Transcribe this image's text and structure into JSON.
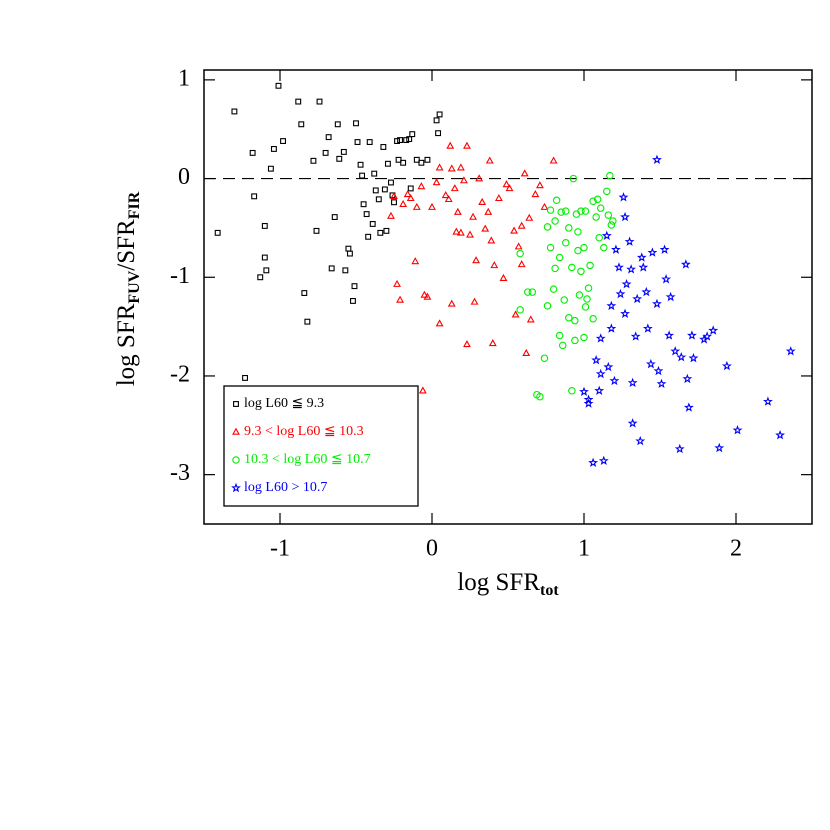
{
  "chart_data": {
    "type": "scatter",
    "xlabel": [
      "log SFR",
      "tot"
    ],
    "ylabel": [
      "log SFR",
      "FUV",
      "/SFR",
      "FIR"
    ],
    "xlim": [
      -1.5,
      2.5
    ],
    "ylim": [
      -3.5,
      1.1
    ],
    "xticks": [
      -1,
      0,
      1,
      2
    ],
    "yticks": [
      -3,
      -2,
      -1,
      0,
      1
    ],
    "hline": 0,
    "legend": "lower left",
    "series": [
      {
        "name": "log L60 ≦ 9.3",
        "color": "#000000",
        "marker": "square",
        "x": [
          -1.41,
          -1.3,
          -1.18,
          -1.17,
          -1.13,
          -1.1,
          -1.1,
          -1.09,
          -1.06,
          -1.04,
          -1.01,
          -1.23,
          -0.98,
          -0.88,
          -0.86,
          -0.84,
          -0.82,
          -0.78,
          -0.76,
          -0.74,
          -0.7,
          -0.68,
          -0.66,
          -0.64,
          -0.62,
          -0.61,
          -0.58,
          -0.57,
          -0.55,
          -0.54,
          -0.52,
          -0.51,
          -0.5,
          -0.49,
          -0.47,
          -0.46,
          -0.45,
          -0.43,
          -0.42,
          -0.41,
          -0.39,
          -0.38,
          -0.37,
          -0.35,
          -0.34,
          -0.32,
          -0.31,
          -0.3,
          -0.29,
          -0.27,
          -0.26,
          -0.25,
          -0.23,
          -0.22,
          -0.21,
          -0.19,
          -0.17,
          -0.15,
          -0.14,
          -0.13,
          -0.1,
          -0.07,
          -0.03,
          0.03,
          0.05,
          0.04
        ],
        "values": [
          -0.55,
          0.68,
          0.26,
          -0.18,
          -1.0,
          -0.48,
          -0.8,
          -0.93,
          0.1,
          0.3,
          0.94,
          -2.02,
          0.38,
          0.78,
          0.55,
          -1.16,
          -1.45,
          0.18,
          -0.53,
          0.78,
          0.26,
          0.42,
          -0.91,
          -0.39,
          0.55,
          0.2,
          0.27,
          -0.93,
          -0.71,
          -0.76,
          -1.24,
          -1.09,
          0.56,
          0.37,
          0.14,
          0.03,
          -0.26,
          -0.36,
          -0.59,
          0.37,
          -0.46,
          0.05,
          -0.12,
          -0.21,
          -0.55,
          0.32,
          -0.11,
          -0.53,
          0.15,
          -0.04,
          -0.17,
          -0.24,
          0.38,
          0.19,
          0.39,
          0.16,
          0.39,
          0.4,
          -0.1,
          0.45,
          0.19,
          0.16,
          0.19,
          0.59,
          0.65,
          0.46
        ]
      },
      {
        "name": "9.3 < log L60 ≦ 10.3",
        "color": "#ff0000",
        "marker": "triangle",
        "x": [
          -0.27,
          -0.25,
          -0.23,
          -0.21,
          -0.19,
          -0.16,
          -0.14,
          -0.11,
          -0.1,
          -0.07,
          -0.06,
          -0.05,
          -0.03,
          0.0,
          0.03,
          0.05,
          0.09,
          0.11,
          0.12,
          0.13,
          0.15,
          0.16,
          0.17,
          0.19,
          0.19,
          0.21,
          0.23,
          0.25,
          0.27,
          0.28,
          0.29,
          0.31,
          0.33,
          0.35,
          0.37,
          0.38,
          0.39,
          0.4,
          0.41,
          0.44,
          0.47,
          0.49,
          0.51,
          0.54,
          0.55,
          0.57,
          0.59,
          0.59,
          0.61,
          0.62,
          0.64,
          0.65,
          0.68,
          0.71,
          0.74,
          0.8,
          0.05,
          0.13,
          0.23
        ],
        "values": [
          -0.38,
          -0.18,
          -1.07,
          -1.23,
          -0.26,
          -0.16,
          -0.2,
          -0.84,
          -0.29,
          -0.08,
          -2.15,
          -1.18,
          -1.2,
          -0.29,
          -0.04,
          0.11,
          -0.17,
          -0.21,
          0.33,
          0.1,
          -0.1,
          -0.54,
          -0.34,
          -0.55,
          0.11,
          -0.02,
          0.33,
          -0.57,
          -0.39,
          -1.25,
          -0.83,
          0.0,
          -0.24,
          -0.51,
          -0.34,
          0.18,
          -0.63,
          -1.67,
          -0.88,
          -0.2,
          -1.01,
          -0.06,
          -0.1,
          -0.53,
          -1.38,
          -0.69,
          -0.87,
          -0.48,
          0.05,
          -1.77,
          -0.4,
          -1.43,
          -0.16,
          -0.07,
          -0.29,
          0.18,
          -1.47,
          -1.27,
          -1.68
        ]
      },
      {
        "name": "10.3 < log L60 ≦ 10.7",
        "color": "#00ee00",
        "marker": "circle",
        "x": [
          0.58,
          0.63,
          0.66,
          0.58,
          0.69,
          0.71,
          0.74,
          0.76,
          0.76,
          0.78,
          0.78,
          0.8,
          0.81,
          0.81,
          0.82,
          0.84,
          0.85,
          0.86,
          0.87,
          0.88,
          0.88,
          0.9,
          0.9,
          0.92,
          0.92,
          0.93,
          0.94,
          0.95,
          0.96,
          0.96,
          0.97,
          0.98,
          0.98,
          1.0,
          1.0,
          1.01,
          1.02,
          1.03,
          1.04,
          1.06,
          1.06,
          1.08,
          1.09,
          1.1,
          1.11,
          1.13,
          1.15,
          1.16,
          1.17,
          1.18,
          1.19,
          1.01,
          0.84,
          0.94
        ],
        "values": [
          -0.76,
          -1.15,
          -1.15,
          -1.33,
          -2.19,
          -2.21,
          -1.82,
          -1.29,
          -0.49,
          -0.32,
          -0.7,
          -1.12,
          -0.43,
          -0.91,
          -0.22,
          -0.8,
          -0.34,
          -1.69,
          -1.23,
          -0.65,
          -0.33,
          -0.5,
          -1.41,
          -2.15,
          -0.9,
          0.0,
          -1.44,
          -0.36,
          -0.54,
          -0.73,
          -1.18,
          -0.94,
          -0.33,
          -1.61,
          -0.7,
          -0.33,
          -1.22,
          -1.11,
          -0.88,
          -0.23,
          -1.42,
          -0.39,
          -0.21,
          -0.6,
          -0.3,
          -0.7,
          -0.13,
          -0.37,
          0.03,
          -0.47,
          -0.43,
          -1.3,
          -1.59,
          -1.64
        ]
      },
      {
        "name": "log L60 > 10.7",
        "color": "#0000ff",
        "marker": "star",
        "x": [
          1.48,
          1.26,
          1.15,
          1.27,
          1.08,
          1.1,
          1.06,
          1.13,
          1.0,
          1.03,
          1.03,
          1.11,
          1.11,
          1.16,
          1.18,
          1.18,
          1.21,
          1.23,
          1.24,
          1.27,
          1.28,
          1.3,
          1.31,
          1.32,
          1.32,
          1.34,
          1.35,
          1.37,
          1.38,
          1.39,
          1.41,
          1.42,
          1.44,
          1.45,
          1.48,
          1.49,
          1.51,
          1.53,
          1.54,
          1.56,
          1.57,
          1.6,
          1.63,
          1.64,
          1.67,
          1.68,
          1.69,
          1.71,
          1.72,
          1.81,
          1.85,
          1.89,
          1.94,
          2.01,
          2.21,
          2.29,
          2.36,
          1.79,
          1.2
        ],
        "values": [
          0.19,
          -0.19,
          -0.58,
          -0.39,
          -1.84,
          -2.15,
          -2.88,
          -2.86,
          -2.16,
          -2.24,
          -2.28,
          -1.62,
          -1.98,
          -1.91,
          -1.52,
          -1.29,
          -0.72,
          -0.9,
          -1.17,
          -1.37,
          -1.07,
          -0.64,
          -0.92,
          -2.48,
          -2.07,
          -1.6,
          -1.22,
          -2.66,
          -0.8,
          -0.9,
          -1.15,
          -1.52,
          -1.88,
          -0.75,
          -1.27,
          -1.95,
          -2.08,
          -0.72,
          -1.02,
          -1.59,
          -1.2,
          -1.75,
          -2.74,
          -1.81,
          -0.87,
          -2.03,
          -2.32,
          -1.59,
          -1.82,
          -1.6,
          -1.54,
          -2.73,
          -1.9,
          -2.55,
          -2.26,
          -2.6,
          -1.75,
          -1.63,
          -2.05
        ]
      }
    ]
  }
}
